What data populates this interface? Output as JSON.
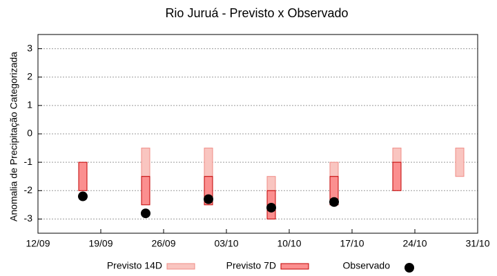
{
  "chart_data": {
    "type": "range_bar",
    "title": "Rio Juruá - Previsto x Observado",
    "ylabel": "Anomalia de Precipitação Categorizada",
    "x": [
      "17/09",
      "24/09",
      "01/10",
      "08/10",
      "15/10",
      "22/10",
      "29/10"
    ],
    "series": [
      {
        "name": "Previsto 14D",
        "kind": "range",
        "color": "#f9c5c0",
        "edge": "#f08c86",
        "values": [
          null,
          [
            -0.5,
            -1.5
          ],
          [
            -0.5,
            -1.5
          ],
          [
            -1.5,
            -2
          ],
          [
            -1,
            -1.5
          ],
          [
            -0.5,
            -1
          ],
          [
            -0.5,
            -1.5
          ]
        ]
      },
      {
        "name": "Previsto 7D",
        "kind": "range",
        "color": "#fb8f8f",
        "edge": "#c00000",
        "values": [
          [
            -1,
            -2
          ],
          [
            -1.5,
            -2.5
          ],
          [
            -1.5,
            -2.5
          ],
          [
            -2,
            -3
          ],
          [
            -1.5,
            -2.5
          ],
          [
            -1,
            -2
          ],
          null
        ]
      },
      {
        "name": "Observado",
        "kind": "point",
        "color": "#000000",
        "values": [
          -2.2,
          -2.8,
          -2.3,
          -2.6,
          -2.4,
          null,
          null
        ]
      }
    ],
    "xlim": [
      "12/09",
      "31/10"
    ],
    "xticks": [
      "12/09",
      "19/09",
      "26/09",
      "03/10",
      "10/10",
      "17/10",
      "24/10",
      "31/10"
    ],
    "ylim": [
      -3.5,
      3.5
    ],
    "yticks": [
      -3,
      -2,
      -1,
      0,
      1,
      2,
      3
    ],
    "grid": true,
    "legend": "bottom"
  }
}
